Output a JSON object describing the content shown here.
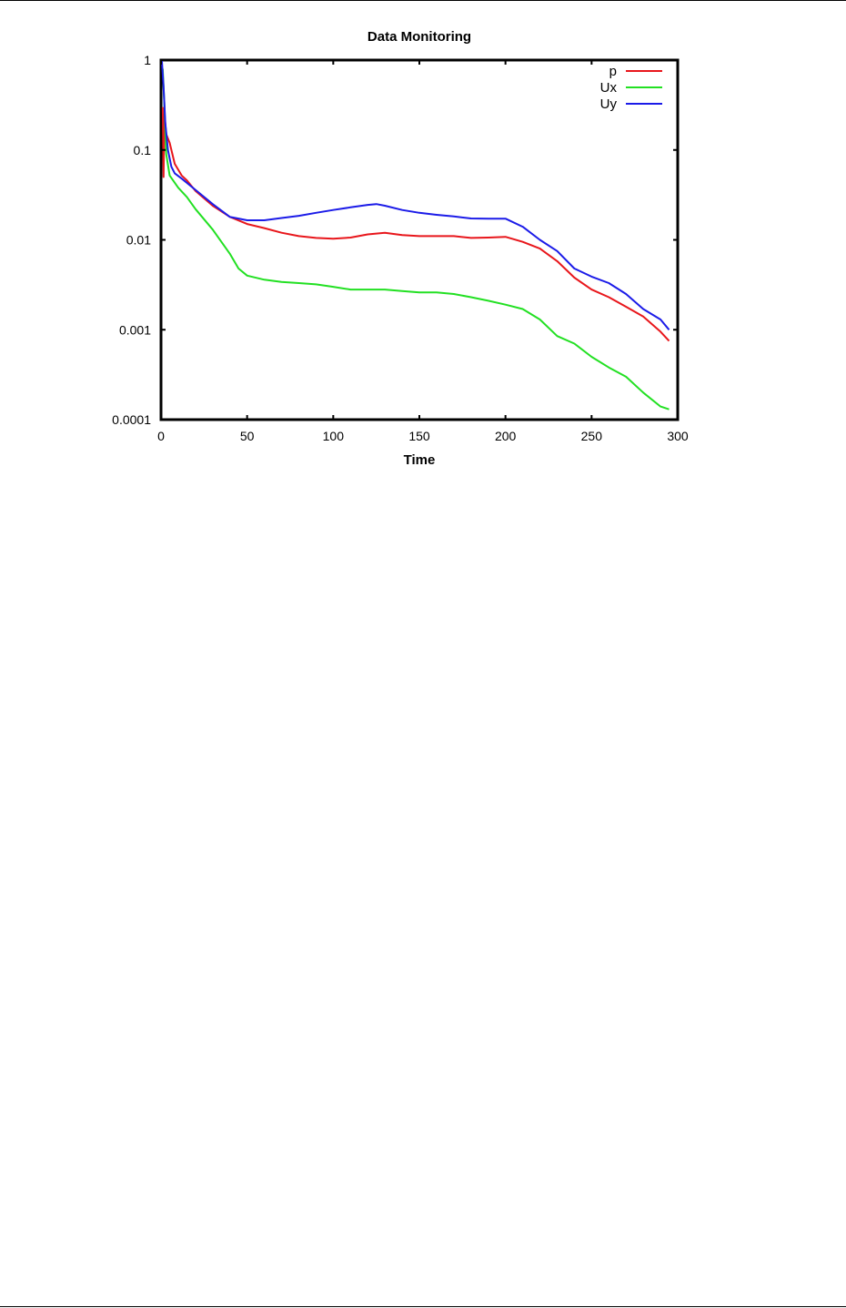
{
  "chart_data": {
    "type": "line",
    "title": "Data Monitoring",
    "xlabel": "Time",
    "ylabel": "",
    "xlim": [
      0,
      300
    ],
    "ylim": [
      0.0001,
      1
    ],
    "yscale": "log",
    "xticks": [
      0,
      50,
      100,
      150,
      200,
      250,
      300
    ],
    "xtick_labels": [
      "0",
      "50",
      "100",
      "150",
      "200",
      "250",
      "300"
    ],
    "yticks": [
      0.0001,
      0.001,
      0.01,
      0.1,
      1
    ],
    "ytick_labels": [
      "0.0001",
      "0.001",
      "0.01",
      "0.1",
      "1"
    ],
    "grid": false,
    "legend_position": "top-right",
    "series": [
      {
        "name": "p",
        "color": "#e8161b",
        "points": [
          [
            1,
            0.3
          ],
          [
            1.5,
            0.05
          ],
          [
            2,
            0.25
          ],
          [
            3,
            0.15
          ],
          [
            5,
            0.12
          ],
          [
            8,
            0.07
          ],
          [
            12,
            0.052
          ],
          [
            15,
            0.046
          ],
          [
            20,
            0.035
          ],
          [
            30,
            0.024
          ],
          [
            40,
            0.018
          ],
          [
            50,
            0.015
          ],
          [
            60,
            0.0135
          ],
          [
            70,
            0.012
          ],
          [
            80,
            0.011
          ],
          [
            90,
            0.0105
          ],
          [
            100,
            0.0103
          ],
          [
            110,
            0.0106
          ],
          [
            120,
            0.0115
          ],
          [
            130,
            0.012
          ],
          [
            140,
            0.0113
          ],
          [
            150,
            0.011
          ],
          [
            160,
            0.011
          ],
          [
            170,
            0.011
          ],
          [
            180,
            0.0105
          ],
          [
            190,
            0.0106
          ],
          [
            200,
            0.0108
          ],
          [
            210,
            0.0095
          ],
          [
            220,
            0.008
          ],
          [
            230,
            0.0058
          ],
          [
            240,
            0.0038
          ],
          [
            250,
            0.0028
          ],
          [
            260,
            0.0023
          ],
          [
            270,
            0.0018
          ],
          [
            280,
            0.0014
          ],
          [
            290,
            0.00095
          ],
          [
            295,
            0.00075
          ]
        ]
      },
      {
        "name": "Ux",
        "color": "#22e022",
        "points": [
          [
            1,
            0.8
          ],
          [
            2,
            0.3
          ],
          [
            3,
            0.09
          ],
          [
            5,
            0.052
          ],
          [
            10,
            0.038
          ],
          [
            15,
            0.03
          ],
          [
            20,
            0.022
          ],
          [
            30,
            0.013
          ],
          [
            40,
            0.007
          ],
          [
            45,
            0.0048
          ],
          [
            50,
            0.004
          ],
          [
            60,
            0.0036
          ],
          [
            70,
            0.0034
          ],
          [
            80,
            0.0033
          ],
          [
            90,
            0.0032
          ],
          [
            100,
            0.003
          ],
          [
            110,
            0.0028
          ],
          [
            120,
            0.0028
          ],
          [
            130,
            0.0028
          ],
          [
            140,
            0.0027
          ],
          [
            150,
            0.0026
          ],
          [
            160,
            0.0026
          ],
          [
            170,
            0.0025
          ],
          [
            180,
            0.0023
          ],
          [
            190,
            0.0021
          ],
          [
            200,
            0.0019
          ],
          [
            210,
            0.0017
          ],
          [
            220,
            0.0013
          ],
          [
            230,
            0.00085
          ],
          [
            240,
            0.0007
          ],
          [
            250,
            0.0005
          ],
          [
            260,
            0.00038
          ],
          [
            270,
            0.0003
          ],
          [
            280,
            0.0002
          ],
          [
            290,
            0.00014
          ],
          [
            295,
            0.00013
          ]
        ]
      },
      {
        "name": "Uy",
        "color": "#1b1be8",
        "points": [
          [
            0.5,
            1
          ],
          [
            1.5,
            0.5
          ],
          [
            2.5,
            0.2
          ],
          [
            4,
            0.1
          ],
          [
            6,
            0.065
          ],
          [
            8,
            0.055
          ],
          [
            12,
            0.048
          ],
          [
            20,
            0.036
          ],
          [
            30,
            0.025
          ],
          [
            40,
            0.018
          ],
          [
            50,
            0.0165
          ],
          [
            60,
            0.0165
          ],
          [
            70,
            0.0175
          ],
          [
            80,
            0.0185
          ],
          [
            90,
            0.02
          ],
          [
            100,
            0.0215
          ],
          [
            110,
            0.023
          ],
          [
            120,
            0.0245
          ],
          [
            125,
            0.025
          ],
          [
            130,
            0.024
          ],
          [
            140,
            0.0215
          ],
          [
            150,
            0.02
          ],
          [
            160,
            0.019
          ],
          [
            170,
            0.0182
          ],
          [
            180,
            0.0173
          ],
          [
            190,
            0.0172
          ],
          [
            200,
            0.0172
          ],
          [
            210,
            0.014
          ],
          [
            220,
            0.01
          ],
          [
            230,
            0.0075
          ],
          [
            240,
            0.0048
          ],
          [
            250,
            0.0039
          ],
          [
            260,
            0.0033
          ],
          [
            270,
            0.0025
          ],
          [
            280,
            0.0017
          ],
          [
            290,
            0.0013
          ],
          [
            295,
            0.001
          ]
        ]
      }
    ]
  }
}
